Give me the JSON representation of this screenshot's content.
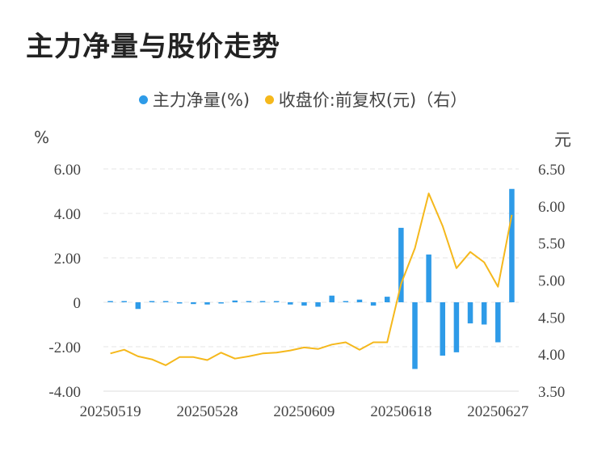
{
  "title": "主力净量与股价走势",
  "legend": {
    "bar_label": "主力净量(%)",
    "line_label": "收盘价:前复权(元)（右）"
  },
  "colors": {
    "bar": "#2e9be8",
    "line": "#f5b81c",
    "grid": "#e6e6e6",
    "text": "#444444"
  },
  "chart_data": {
    "type": "bar+line",
    "title": "主力净量与股价走势",
    "x_tick_labels": [
      "20250519",
      "20250528",
      "20250609",
      "20250618",
      "20250627"
    ],
    "x_tick_indices": [
      0,
      7,
      14,
      21,
      28
    ],
    "y_left": {
      "label": "%",
      "ticks": [
        "6.00",
        "4.00",
        "2.00",
        "0",
        "-2.00",
        "-4.00"
      ],
      "range": [
        -4,
        6
      ]
    },
    "y_right": {
      "label": "元",
      "ticks": [
        "6.50",
        "6.00",
        "5.50",
        "5.00",
        "4.50",
        "4.00",
        "3.50"
      ],
      "range": [
        3.5,
        6.5
      ]
    },
    "grid": true,
    "legend_position": "top",
    "series": [
      {
        "name": "主力净量(%)",
        "type": "bar",
        "axis": "left",
        "values": [
          0.05,
          0.03,
          -0.3,
          0.02,
          0.0,
          -0.05,
          -0.08,
          -0.1,
          -0.05,
          0.08,
          0.05,
          0.02,
          0.0,
          -0.1,
          -0.15,
          -0.2,
          0.3,
          0.02,
          0.12,
          -0.15,
          0.25,
          3.35,
          -3.0,
          2.15,
          -2.4,
          -2.25,
          -0.95,
          -1.0,
          -1.8,
          5.1
        ]
      },
      {
        "name": "收盘价:前复权(元)（右）",
        "type": "line",
        "axis": "right",
        "values": [
          4.01,
          4.06,
          3.97,
          3.93,
          3.85,
          3.96,
          3.96,
          3.92,
          4.02,
          3.94,
          3.97,
          4.01,
          4.02,
          4.05,
          4.09,
          4.07,
          4.13,
          4.16,
          4.06,
          4.16,
          4.16,
          4.95,
          5.43,
          6.17,
          5.73,
          5.16,
          5.38,
          5.24,
          4.91,
          5.88
        ]
      }
    ]
  }
}
